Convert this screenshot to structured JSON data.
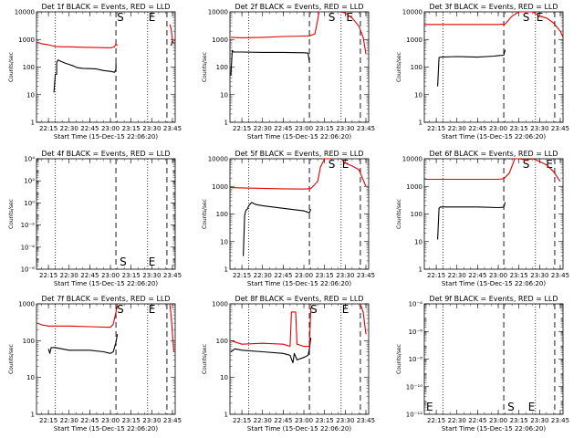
{
  "x_tick_labels": [
    "22:15",
    "22:30",
    "22:45",
    "23:00",
    "23:15",
    "23:30",
    "23:45"
  ],
  "x_axis_label": "Start Time (15-Dec-15 22:06:20)",
  "y_axis_label": "Counts/sec",
  "y_ticks_linear": [
    "1",
    "10",
    "100",
    "1000",
    "10000"
  ],
  "y_ticks_exp": [
    "10⁻⁶",
    "10⁻⁴",
    "10⁻²",
    "10⁰",
    "10²",
    "10⁴"
  ],
  "markers": {
    "s": "S",
    "e": "E"
  },
  "colors": {
    "events": "#000000",
    "lld": "#e00000"
  },
  "chart_data": [
    {
      "type": "line",
      "title": "Det 1f BLACK = Events, RED = LLD",
      "yscale": "log",
      "ylim": [
        1,
        10000
      ],
      "xrange": [
        "22:06:20",
        "23:47:00"
      ],
      "dotted_lines": [
        "22:20",
        "23:27"
      ],
      "dashed_lines": [
        "23:04",
        "23:41"
      ],
      "marker_labels": [
        {
          "text": "S",
          "time": "23:04"
        },
        {
          "text": "E",
          "time": "23:27"
        }
      ],
      "series": [
        {
          "role": "events",
          "x": [
            "22:19",
            "22:20",
            "22:21",
            "22:21",
            "22:22",
            "22:24",
            "22:27",
            "22:30",
            "22:33",
            "22:36",
            "22:40",
            "22:45",
            "22:50",
            "22:55",
            "23:00",
            "23:03",
            "23:04",
            "23:04"
          ],
          "y": [
            12,
            55,
            55,
            150,
            180,
            160,
            140,
            125,
            110,
            95,
            90,
            88,
            85,
            75,
            70,
            65,
            85,
            140
          ]
        },
        {
          "role": "events",
          "x": [
            "23:44",
            "23:45"
          ],
          "y": [
            600,
            900
          ]
        },
        {
          "role": "lld",
          "x": [
            "22:07",
            "22:10",
            "22:15",
            "22:20",
            "22:25",
            "22:30",
            "22:40",
            "22:50",
            "23:00",
            "23:03",
            "23:04",
            "23:05"
          ],
          "y": [
            800,
            700,
            640,
            560,
            540,
            540,
            520,
            510,
            500,
            540,
            700,
            600
          ]
        },
        {
          "role": "lld",
          "x": [
            "23:43",
            "23:44",
            "23:45",
            "23:46"
          ],
          "y": [
            3500,
            2500,
            900,
            700
          ]
        }
      ]
    },
    {
      "type": "line",
      "title": "Det 2f BLACK = Events, RED = LLD",
      "yscale": "log",
      "ylim": [
        1,
        10000
      ],
      "xrange": [
        "22:06:20",
        "23:47:00"
      ],
      "dotted_lines": [
        "22:20",
        "23:27"
      ],
      "dashed_lines": [
        "23:04",
        "23:41"
      ],
      "marker_labels": [
        {
          "text": "S",
          "time": "23:17"
        },
        {
          "text": "E",
          "time": "23:30"
        }
      ],
      "series": [
        {
          "role": "events",
          "x": [
            "22:07",
            "22:08",
            "22:09",
            "22:15",
            "22:30",
            "22:45",
            "23:00",
            "23:03",
            "23:04"
          ],
          "y": [
            50,
            400,
            350,
            350,
            340,
            340,
            330,
            320,
            150
          ]
        },
        {
          "role": "lld",
          "x": [
            "22:07",
            "22:15",
            "22:30",
            "22:45",
            "23:00",
            "23:04",
            "23:08",
            "23:10",
            "23:11",
            "23:12"
          ],
          "y": [
            1200,
            1150,
            1200,
            1280,
            1330,
            1350,
            1600,
            5000,
            11000,
            11000
          ]
        },
        {
          "role": "lld",
          "x": [
            "23:27",
            "23:30",
            "23:35",
            "23:40",
            "23:43",
            "23:45"
          ],
          "y": [
            11000,
            9000,
            6000,
            3000,
            1200,
            300
          ]
        }
      ]
    },
    {
      "type": "line",
      "title": "Det 3f BLACK = Events, RED = LLD",
      "yscale": "log",
      "ylim": [
        1,
        10000
      ],
      "xrange": [
        "22:06:20",
        "23:47:00"
      ],
      "dotted_lines": [
        "22:20",
        "23:27"
      ],
      "dashed_lines": [
        "23:04",
        "23:41"
      ],
      "marker_labels": [
        {
          "text": "S",
          "time": "23:17"
        },
        {
          "text": "E",
          "time": "23:27"
        }
      ],
      "series": [
        {
          "role": "events",
          "x": [
            "22:16",
            "22:17",
            "22:18",
            "22:30",
            "22:45",
            "22:57",
            "23:00",
            "23:04",
            "23:05"
          ],
          "y": [
            20,
            220,
            230,
            240,
            230,
            250,
            260,
            270,
            420
          ]
        },
        {
          "role": "lld",
          "x": [
            "22:06:20",
            "22:30",
            "23:00",
            "23:05",
            "23:10",
            "23:15",
            "23:20",
            "23:25",
            "23:30",
            "23:35",
            "23:40",
            "23:45",
            "23:47"
          ],
          "y": [
            3500,
            3500,
            3500,
            3600,
            7000,
            12000,
            10000,
            11000,
            7000,
            6000,
            4000,
            2000,
            1200
          ]
        }
      ]
    },
    {
      "type": "line",
      "title": "Det 4f BLACK = Events, RED = LLD",
      "yscale": "log",
      "ylim": [
        1e-06,
        10000
      ],
      "xrange": [
        "22:06:20",
        "23:47:00"
      ],
      "dotted_lines": [
        "22:20",
        "23:27"
      ],
      "dashed_lines": [
        "23:04",
        "23:41"
      ],
      "marker_labels": [
        {
          "text": "S",
          "time": "23:06"
        },
        {
          "text": "E",
          "time": "23:27"
        }
      ],
      "series": []
    },
    {
      "type": "line",
      "title": "Det 5f BLACK = Events, RED = LLD",
      "yscale": "log",
      "ylim": [
        1,
        10000
      ],
      "xrange": [
        "22:06:20",
        "23:47:00"
      ],
      "dotted_lines": [
        "22:20",
        "23:27"
      ],
      "dashed_lines": [
        "23:04",
        "23:41"
      ],
      "marker_labels": [
        {
          "text": "S",
          "time": "23:17"
        },
        {
          "text": "E",
          "time": "23:27"
        }
      ],
      "series": [
        {
          "role": "events",
          "x": [
            "22:16",
            "22:17",
            "22:18",
            "22:19",
            "22:20",
            "22:22",
            "22:25",
            "22:30",
            "22:45",
            "23:00",
            "23:04",
            "23:05"
          ],
          "y": [
            3,
            90,
            140,
            150,
            200,
            260,
            220,
            200,
            160,
            130,
            110,
            150
          ]
        },
        {
          "role": "lld",
          "x": [
            "22:06:20",
            "22:15",
            "22:30",
            "22:45",
            "23:00",
            "23:05",
            "23:10",
            "23:12",
            "23:15",
            "23:20"
          ],
          "y": [
            900,
            880,
            850,
            820,
            800,
            830,
            1500,
            5000,
            11000,
            11000
          ]
        },
        {
          "role": "lld",
          "x": [
            "23:27",
            "23:30",
            "23:35",
            "23:40",
            "23:45"
          ],
          "y": [
            11000,
            7000,
            5500,
            4000,
            1000
          ]
        }
      ]
    },
    {
      "type": "line",
      "title": "Det 6f BLACK = Events, RED = LLD",
      "yscale": "log",
      "ylim": [
        1,
        10000
      ],
      "xrange": [
        "22:06:20",
        "23:47:00"
      ],
      "dotted_lines": [
        "22:20",
        "23:27"
      ],
      "dashed_lines": [
        "23:04",
        "23:41"
      ],
      "marker_labels": [
        {
          "text": "S",
          "time": "23:17"
        },
        {
          "text": "E",
          "time": "23:34"
        }
      ],
      "series": [
        {
          "role": "events",
          "x": [
            "22:16",
            "22:17",
            "22:18",
            "22:30",
            "22:45",
            "23:00",
            "23:04",
            "23:05"
          ],
          "y": [
            12,
            160,
            180,
            180,
            180,
            170,
            175,
            270
          ]
        },
        {
          "role": "lld",
          "x": [
            "22:06:20",
            "22:30",
            "23:00",
            "23:04",
            "23:08",
            "23:12",
            "23:15",
            "23:20",
            "23:25",
            "23:30",
            "23:35",
            "23:40",
            "23:45"
          ],
          "y": [
            1800,
            1800,
            1800,
            1900,
            3000,
            11000,
            10000,
            9000,
            12000,
            8000,
            6000,
            3500,
            1500
          ]
        }
      ]
    },
    {
      "type": "line",
      "title": "Det 7f BLACK = Events, RED = LLD",
      "yscale": "log",
      "ylim": [
        1,
        1000
      ],
      "xrange": [
        "22:06:20",
        "23:47:00"
      ],
      "dotted_lines": [
        "22:20",
        "23:27"
      ],
      "dashed_lines": [
        "23:04",
        "23:41"
      ],
      "marker_labels": [
        {
          "text": "S",
          "time": "23:04"
        },
        {
          "text": "E",
          "time": "23:27"
        }
      ],
      "series": [
        {
          "role": "events",
          "x": [
            "22:15",
            "22:16",
            "22:17",
            "22:20",
            "22:30",
            "22:45",
            "22:55",
            "23:00",
            "23:02",
            "23:04",
            "23:05"
          ],
          "y": [
            60,
            45,
            65,
            65,
            55,
            55,
            50,
            45,
            50,
            90,
            150
          ]
        },
        {
          "role": "lld",
          "x": [
            "22:07",
            "22:10",
            "22:15",
            "22:30",
            "22:45",
            "23:00",
            "23:02",
            "23:04",
            "23:05"
          ],
          "y": [
            300,
            270,
            250,
            250,
            240,
            230,
            280,
            600,
            900
          ]
        },
        {
          "role": "lld",
          "x": [
            "23:43",
            "23:44",
            "23:45",
            "23:46"
          ],
          "y": [
            1000,
            500,
            150,
            50
          ]
        }
      ]
    },
    {
      "type": "line",
      "title": "Det 8f BLACK = Events, RED = LLD",
      "yscale": "log",
      "ylim": [
        1,
        1000
      ],
      "xrange": [
        "22:06:20",
        "23:47:00"
      ],
      "dotted_lines": [
        "22:20",
        "23:27"
      ],
      "dashed_lines": [
        "23:04",
        "23:41"
      ],
      "marker_labels": [
        {
          "text": "S",
          "time": "23:04"
        },
        {
          "text": "E",
          "time": "23:27"
        }
      ],
      "series": [
        {
          "role": "events",
          "x": [
            "22:07",
            "22:10",
            "22:15",
            "22:30",
            "22:45",
            "22:50",
            "22:52",
            "22:53",
            "22:55",
            "23:00",
            "23:03",
            "23:04",
            "23:05"
          ],
          "y": [
            50,
            60,
            55,
            50,
            45,
            40,
            25,
            45,
            30,
            35,
            40,
            60,
            120
          ]
        },
        {
          "role": "lld",
          "x": [
            "22:07",
            "22:15",
            "22:30",
            "22:45",
            "22:50",
            "22:51",
            "22:54",
            "22:55",
            "23:00",
            "23:04",
            "23:05"
          ],
          "y": [
            100,
            80,
            85,
            80,
            70,
            600,
            600,
            80,
            70,
            70,
            800
          ]
        },
        {
          "role": "lld",
          "x": [
            "23:41",
            "23:43",
            "23:45"
          ],
          "y": [
            1000,
            600,
            150
          ]
        }
      ]
    },
    {
      "type": "line",
      "title": "Det 9f BLACK = Events, RED = LLD",
      "yscale": "log",
      "ylim": [
        1e-12,
        0.0001
      ],
      "xrange": [
        "22:06:20",
        "23:47:00"
      ],
      "dotted_lines": [
        "22:20",
        "23:27"
      ],
      "dashed_lines": [
        "23:04",
        "23:41"
      ],
      "marker_labels": [
        {
          "text": "E",
          "time": "22:07"
        },
        {
          "text": "S",
          "time": "23:06"
        },
        {
          "text": "E",
          "time": "23:21"
        }
      ],
      "series": []
    }
  ]
}
